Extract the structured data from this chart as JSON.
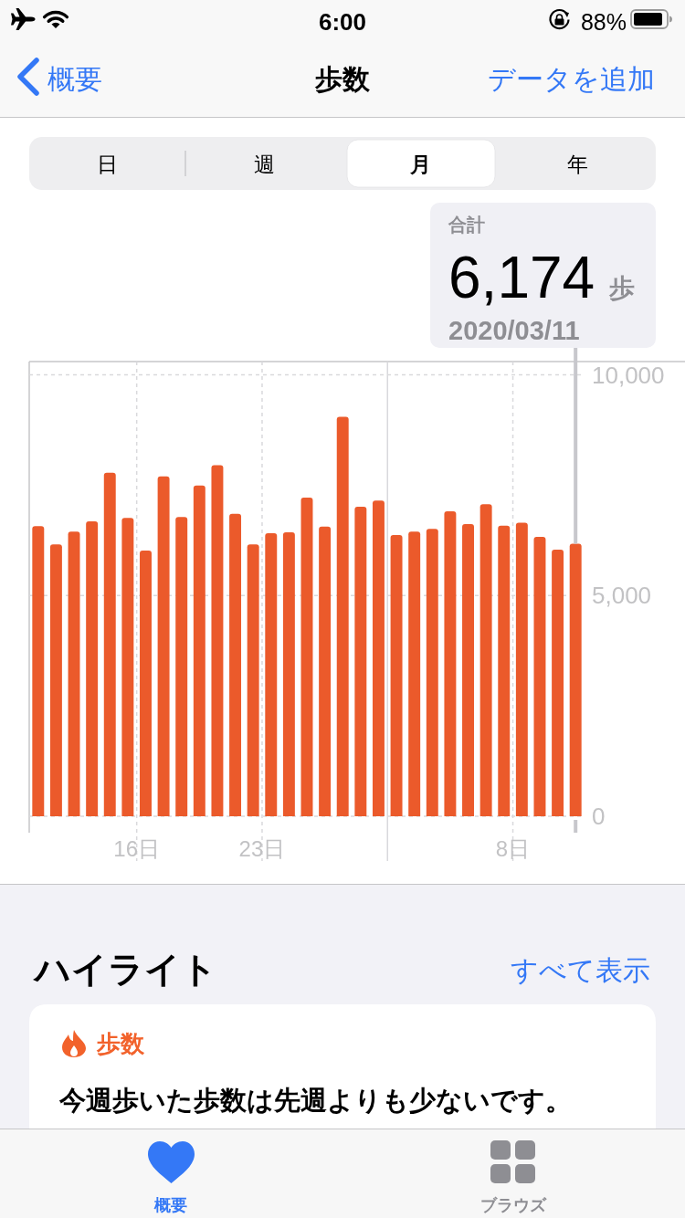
{
  "chart_data": {
    "type": "bar",
    "title": "歩数",
    "x": [
      "2020-02-10T12:00",
      "2020-02-11T12:00",
      "2020-02-12T12:00",
      "2020-02-13T12:00",
      "2020-02-14T12:00",
      "2020-02-15T12:00",
      "2020-02-16T12:00",
      "2020-02-17T12:00",
      "2020-02-18T12:00",
      "2020-02-19T12:00",
      "2020-02-20T12:00",
      "2020-02-21T12:00",
      "2020-02-22T12:00",
      "2020-02-23T12:00",
      "2020-02-24T12:00",
      "2020-02-25T12:00",
      "2020-02-26T12:00",
      "2020-02-27T12:00",
      "2020-02-28T12:00",
      "2020-02-29T12:00",
      "2020-03-01T12:00",
      "2020-03-02T12:00",
      "2020-03-03T12:00",
      "2020-03-04T12:00",
      "2020-03-05T12:00",
      "2020-03-06T12:00",
      "2020-03-07T12:00",
      "2020-03-08T12:00",
      "2020-03-09T12:00",
      "2020-03-10T12:00",
      "2020-03-11T12:00"
    ],
    "values": [
      6570,
      6160,
      6450,
      6680,
      7780,
      6760,
      6020,
      7700,
      6780,
      7490,
      7950,
      6850,
      6160,
      6410,
      6430,
      7220,
      6560,
      9050,
      7010,
      7150,
      6370,
      6450,
      6510,
      6910,
      6620,
      7070,
      6580,
      6650,
      6330,
      6040,
      6174
    ],
    "color": "#eb5a2b",
    "xlim": [
      "2020-02-10",
      "2020-03-12"
    ],
    "xticks": [
      {
        "value": "2020-02-16",
        "label": "16日"
      },
      {
        "value": "2020-02-23",
        "label": "23日"
      },
      {
        "value": "2020-03-08",
        "label": "8日"
      }
    ],
    "ylim": [
      0,
      10300
    ],
    "yticks": [
      0,
      {
        "value": 5000,
        "label": "5,000"
      },
      {
        "value": 10000,
        "label": "10,000"
      }
    ],
    "grid": true,
    "ref_lines": [
      {
        "axis": "x",
        "value": "2020-03-01"
      }
    ],
    "annotations": [
      "6:00",
      "88%",
      "概要",
      "データを追加",
      "日",
      "週",
      "月",
      "年",
      "合計",
      {
        "text": "6,174",
        "x": "2020-03-11T12:00",
        "y": 6174
      },
      "歩",
      "2020/03/11",
      "ハイライト",
      "すべて表示",
      "歩数",
      "今週歩いた歩数は先週よりも少ないです。",
      "概要",
      "ブラウズ"
    ]
  }
}
